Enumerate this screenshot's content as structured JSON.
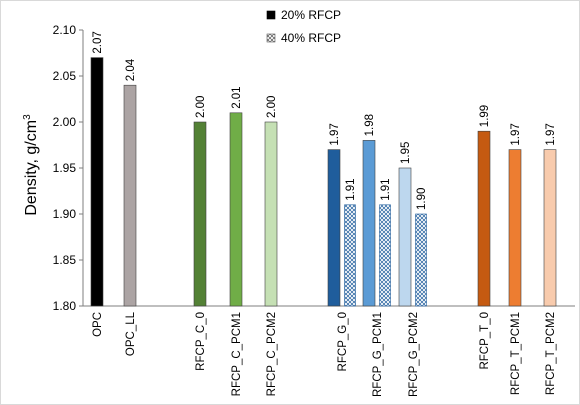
{
  "chart_data": {
    "type": "bar",
    "ylabel": "Density, g/cm",
    "ylabel_sup": "3",
    "ylim": [
      1.8,
      2.1
    ],
    "yticks": [
      "1.80",
      "1.85",
      "1.90",
      "1.95",
      "2.00",
      "2.05",
      "2.10"
    ],
    "grid": false,
    "legend_position": "top-center",
    "categories": [
      "OPC",
      "OPC_LL",
      "RFCP_C_0",
      "RFCP_C_PCM1",
      "RFCP_C_PCM2",
      "RFCP_G_0",
      "RFCP_G_PCM1",
      "RFCP_G_PCM2",
      "RFCP_T_0",
      "RFCP_T_PCM1",
      "RFCP_T_PCM2"
    ],
    "series": [
      {
        "name": "20% RFCP",
        "values": [
          2.07,
          2.04,
          2.0,
          2.01,
          2.0,
          1.97,
          1.98,
          1.95,
          1.99,
          1.97,
          1.97
        ],
        "labels": [
          "2.07",
          "2.04",
          "2.00",
          "2.01",
          "2.00",
          "1.97",
          "1.98",
          "1.95",
          "1.99",
          "1.97",
          "1.97"
        ]
      },
      {
        "name": "40% RFCP",
        "values": [
          null,
          null,
          null,
          null,
          null,
          1.91,
          1.91,
          1.9,
          null,
          null,
          null
        ],
        "labels": [
          null,
          null,
          null,
          null,
          null,
          "1.91",
          "1.91",
          "1.90",
          null,
          null,
          null
        ]
      }
    ],
    "bar_colors": [
      "#000000",
      "#aca4a4",
      "#538135",
      "#70ad47",
      "#c5e0b4",
      "#1f5d9c",
      "#5b9bd5",
      "#bdd7ee",
      "#c55a11",
      "#ed7d31",
      "#f8cbad"
    ],
    "legend_colors": [
      "#000000",
      "#ffffff"
    ]
  }
}
